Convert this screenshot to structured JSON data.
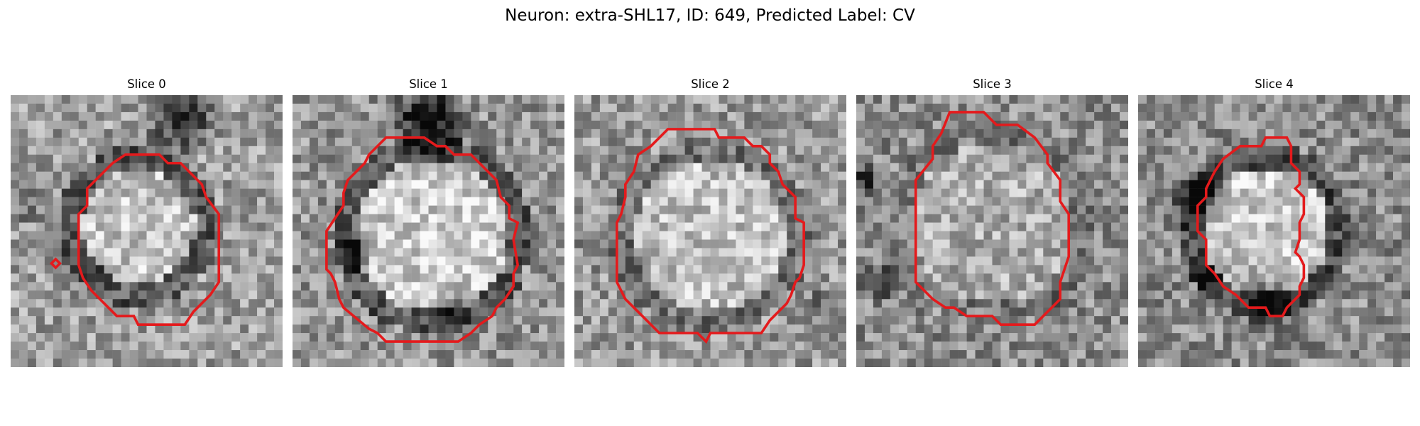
{
  "figure": {
    "title": "Neuron: extra-SHL17, ID: 649, Predicted Label: CV"
  },
  "colors": {
    "background": "#ffffff",
    "contour": "#e41a1c",
    "text": "#000000"
  },
  "panels": [
    {
      "title": "Slice 0"
    },
    {
      "title": "Slice 1"
    },
    {
      "title": "Slice 2"
    },
    {
      "title": "Slice 3"
    },
    {
      "title": "Slice 4"
    }
  ]
}
